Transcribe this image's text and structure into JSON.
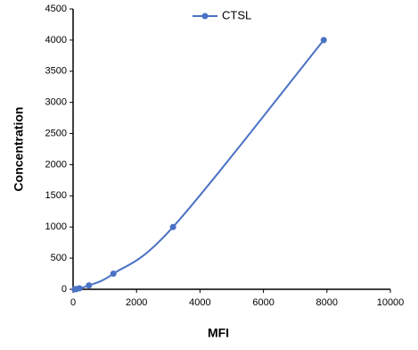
{
  "chart_data": {
    "type": "line",
    "x_label": "MFI",
    "y_label": "Concentration",
    "series": [
      {
        "name": "CTSL",
        "color": "#4a72c4",
        "x": [
          50,
          100,
          200,
          500,
          1270,
          3150,
          7900
        ],
        "values": [
          0,
          4,
          16,
          62,
          250,
          1000,
          4000
        ]
      }
    ],
    "xlim": [
      0,
      10000
    ],
    "xticks": [
      0,
      2000,
      4000,
      6000,
      8000,
      10000
    ],
    "ylim": [
      0,
      4500
    ],
    "yticks": [
      0,
      500,
      1000,
      1500,
      2000,
      2500,
      3000,
      3500,
      4000,
      4500
    ],
    "grid": false,
    "legend": "top"
  }
}
